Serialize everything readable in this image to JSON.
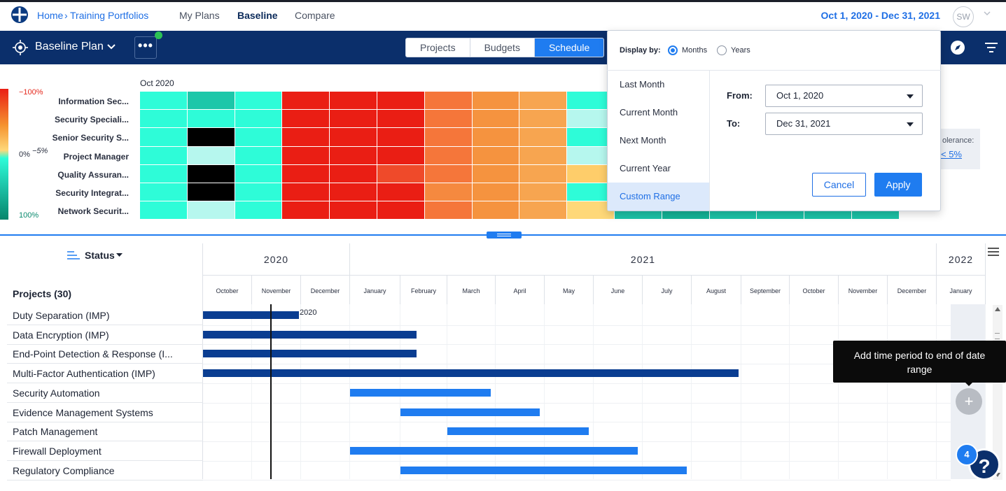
{
  "topnav": {
    "breadcrumb_home": "Home",
    "breadcrumb_sep": "›",
    "breadcrumb_current": "Training Portfolios",
    "links": [
      "My Plans",
      "Baseline",
      "Compare"
    ],
    "active_link": "Baseline",
    "date_range": "Oct 1, 2020 - Dec 31, 2021",
    "avatar_initials": "SW"
  },
  "toolbar": {
    "plan_name": "Baseline Plan",
    "more_label": "•••",
    "tabs": [
      "Projects",
      "Budgets",
      "Schedule"
    ],
    "active_tab": "Schedule"
  },
  "heatmap": {
    "legend_top": "−100%",
    "legend_mid_left": "0%",
    "legend_mid_right": "−5%",
    "legend_bottom": "100%",
    "start_month": "Oct 2020",
    "rows": [
      "Information Sec...",
      "Security Speciali...",
      "Senior Security S...",
      "Project Manager",
      "Quality Assuran...",
      "Security Integrat...",
      "Network Securit..."
    ],
    "cells": [
      [
        "#2efcd8",
        "#1cc7a9",
        "#2efcd8",
        "#ea1e14",
        "#ea1e14",
        "#ea1e14",
        "#f5763a",
        "#f5933f",
        "#f7a550",
        "#2efcd8"
      ],
      [
        "#2efcd8",
        "#2efcd8",
        "#2efcd8",
        "#ea1e14",
        "#ea1e14",
        "#ea1e14",
        "#f5763a",
        "#f5933f",
        "#f7a550",
        "#b6f7ee"
      ],
      [
        "#2efcd8",
        "#000000",
        "#2efcd8",
        "#ea1e14",
        "#ea1e14",
        "#ea1e14",
        "#f5763a",
        "#f5933f",
        "#f7a550",
        "#2efcd8"
      ],
      [
        "#2efcd8",
        "#b6f7ee",
        "#2efcd8",
        "#ea1e14",
        "#ea1e14",
        "#ea1e14",
        "#f5763a",
        "#f5933f",
        "#f7a550",
        "#b6f7ee"
      ],
      [
        "#2efcd8",
        "#000000",
        "#2efcd8",
        "#ea1e14",
        "#ea1e14",
        "#ef4a2a",
        "#f5763a",
        "#f5933f",
        "#f7a550",
        "#fecd6a"
      ],
      [
        "#2efcd8",
        "#000000",
        "#2efcd8",
        "#ea1e14",
        "#ea1e14",
        "#ea1e14",
        "#f5893f",
        "#f5933f",
        "#f7a550",
        "#2efcd8"
      ],
      [
        "#2efcd8",
        "#b6f7ee",
        "#2efcd8",
        "#ea1e14",
        "#ea1e14",
        "#ea1e14",
        "#f5763a",
        "#f5933f",
        "#f7a550",
        "#fed879"
      ]
    ],
    "tail_cells": [
      "#1cc2a7",
      "#14b497",
      "#1cc2a7",
      "#1cc2a7",
      "#1cc2a7",
      "#1cc2a7"
    ],
    "tolerance_label": "olerance:",
    "tolerance_value": "< 5%"
  },
  "gantt": {
    "sort_label": "Status",
    "projects_heading": "Projects (30)",
    "years": [
      {
        "label": "2020",
        "months": 3
      },
      {
        "label": "2021",
        "months": 12
      },
      {
        "label": "2022",
        "months": 1
      }
    ],
    "months": [
      "October",
      "November",
      "December",
      "January",
      "February",
      "March",
      "April",
      "May",
      "June",
      "July",
      "August",
      "September",
      "October",
      "November",
      "December",
      "January"
    ],
    "today_label": "2020",
    "projects": [
      {
        "name": "Duty Separation (IMP)",
        "start_month": 0.0,
        "end_month": 1.95,
        "color": "#0a3d91"
      },
      {
        "name": "Data Encryption (IMP)",
        "start_month": 0.0,
        "end_month": 4.35,
        "color": "#0a3d91"
      },
      {
        "name": "End-Point Detection & Response (I...",
        "start_month": 0.0,
        "end_month": 4.35,
        "color": "#0a3d91"
      },
      {
        "name": "Multi-Factor Authentication (IMP)",
        "start_month": 0.0,
        "end_month": 10.95,
        "color": "#0a3d91"
      },
      {
        "name": "Security Automation",
        "start_month": 3.0,
        "end_month": 5.9,
        "color": "#1f7cf0"
      },
      {
        "name": "Evidence Management Systems",
        "start_month": 4.0,
        "end_month": 6.9,
        "color": "#1f7cf0"
      },
      {
        "name": "Patch Management",
        "start_month": 5.0,
        "end_month": 7.9,
        "color": "#1f7cf0"
      },
      {
        "name": "Firewall Deployment",
        "start_month": 3.0,
        "end_month": 8.9,
        "color": "#1f7cf0"
      },
      {
        "name": "Regulatory Compliance",
        "start_month": 4.0,
        "end_month": 9.9,
        "color": "#1f7cf0"
      }
    ],
    "today_month": 1.37,
    "add_period_label": "+",
    "tooltip": "Add time period to end of date range"
  },
  "help": {
    "label": "?",
    "badge_count": "4"
  },
  "popover": {
    "display_by_label": "Display by:",
    "options": [
      "Months",
      "Years"
    ],
    "selected_option": "Months",
    "presets": [
      "Last Month",
      "Current Month",
      "Next Month",
      "Current Year",
      "Custom Range"
    ],
    "active_preset": "Custom Range",
    "from_label": "From:",
    "from_value": "Oct 1, 2020",
    "to_label": "To:",
    "to_value": "Dec 31, 2021",
    "cancel_label": "Cancel",
    "apply_label": "Apply"
  }
}
